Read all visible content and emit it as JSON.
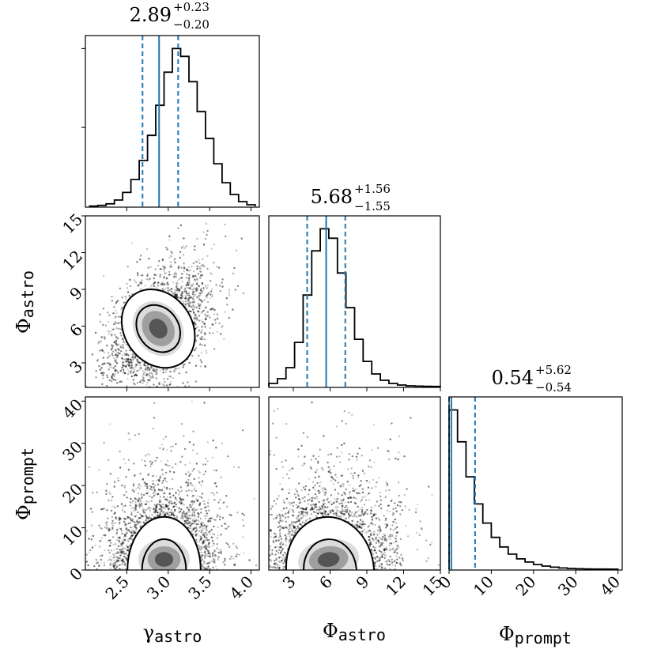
{
  "colors": {
    "median_line": "#1f77b4",
    "histogram": "#000000",
    "points": "#000000",
    "background": "#ffffff"
  },
  "chart_data": {
    "type": "corner",
    "parameters": [
      {
        "symbol": "γ",
        "subscript": "astro"
      },
      {
        "symbol": "Φ",
        "subscript": "astro"
      },
      {
        "symbol": "Φ",
        "subscript": "prompt"
      }
    ],
    "summaries": [
      {
        "median": "2.89",
        "plus": "+0.23",
        "minus": "−0.20",
        "median_value": 2.89,
        "lo_value": 2.69,
        "hi_value": 3.12
      },
      {
        "median": "5.68",
        "plus": "+1.56",
        "minus": "−1.55",
        "median_value": 5.68,
        "lo_value": 4.13,
        "hi_value": 7.24
      },
      {
        "median": "0.54",
        "plus": "+5.62",
        "minus": "−0.54",
        "median_value": 0.54,
        "lo_value": 0.0,
        "hi_value": 6.16
      }
    ],
    "ranges": [
      [
        2.0,
        4.1
      ],
      [
        1.0,
        15.0
      ],
      [
        0.0,
        41.0
      ]
    ],
    "ticks": [
      {
        "values": [
          2.5,
          3.0,
          3.5,
          4.0
        ],
        "labels": [
          "2.5",
          "3.0",
          "3.5",
          "4.0"
        ]
      },
      {
        "values": [
          3,
          6,
          9,
          12,
          15
        ],
        "labels": [
          "3",
          "6",
          "9",
          "12",
          "15"
        ]
      },
      {
        "values": [
          0,
          10,
          20,
          30,
          40
        ],
        "labels": [
          "0",
          "10",
          "20",
          "30",
          "40"
        ]
      }
    ],
    "histograms": [
      {
        "bin_edges": [
          2.05,
          2.15,
          2.25,
          2.35,
          2.45,
          2.55,
          2.65,
          2.75,
          2.85,
          2.95,
          3.05,
          3.15,
          3.25,
          3.35,
          3.45,
          3.55,
          3.65,
          3.75,
          3.85,
          3.95,
          4.05
        ],
        "counts": [
          0.002,
          0.006,
          0.016,
          0.04,
          0.088,
          0.17,
          0.29,
          0.45,
          0.64,
          0.85,
          1.0,
          0.95,
          0.79,
          0.6,
          0.43,
          0.27,
          0.15,
          0.075,
          0.03,
          0.01
        ]
      },
      {
        "bin_edges": [
          1.0,
          1.7,
          2.4,
          3.1,
          3.8,
          4.5,
          5.2,
          5.9,
          6.6,
          7.3,
          8.0,
          8.7,
          9.4,
          10.1,
          10.8,
          11.5,
          12.2,
          12.9,
          13.6,
          14.3,
          15.0
        ],
        "counts": [
          0.02,
          0.05,
          0.12,
          0.28,
          0.58,
          0.86,
          1.0,
          0.94,
          0.72,
          0.5,
          0.3,
          0.16,
          0.08,
          0.04,
          0.02,
          0.01,
          0.005,
          0.003,
          0.002,
          0.001
        ]
      },
      {
        "bin_edges": [
          0,
          2,
          4,
          6,
          8,
          10,
          12,
          14,
          16,
          18,
          20,
          22,
          24,
          26,
          28,
          30,
          32,
          34,
          36,
          38,
          40
        ],
        "counts": [
          1.0,
          0.8,
          0.58,
          0.41,
          0.29,
          0.2,
          0.14,
          0.095,
          0.065,
          0.045,
          0.03,
          0.02,
          0.013,
          0.008,
          0.005,
          0.003,
          0.002,
          0.001,
          0.001,
          0.0005
        ]
      }
    ],
    "scatter_2d": [
      {
        "x_param": 0,
        "y_param": 1,
        "x_mean": 2.88,
        "y_mean": 5.8,
        "x_sd": 0.24,
        "y_sd": 2.0,
        "corr": 0.45,
        "n_points": 2400
      },
      {
        "x_param": 0,
        "y_param": 2,
        "x_mean": 2.95,
        "y_mean": 4.0,
        "x_sd": 0.26,
        "y_sd": 6.0,
        "corr": -0.25,
        "n_points": 2400
      },
      {
        "x_param": 1,
        "y_param": 2,
        "x_mean": 6.0,
        "y_mean": 4.0,
        "x_sd": 2.1,
        "y_sd": 6.0,
        "corr": -0.3,
        "n_points": 2400
      }
    ]
  }
}
